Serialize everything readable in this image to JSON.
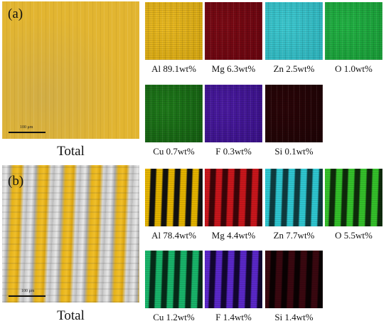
{
  "panel_a": {
    "letter": "(a)",
    "total_label": "Total",
    "scale_label": "100 μm",
    "maps": [
      {
        "element": "Al",
        "text": "Al 89.1wt%",
        "color": "#e8b820",
        "bg": "#d6a712"
      },
      {
        "element": "Mg",
        "text": "Mg 6.3wt%",
        "color": "#7a0a14",
        "bg": "#6a0610"
      },
      {
        "element": "Zn",
        "text": "Zn 2.5wt%",
        "color": "#3cc8cf",
        "bg": "#2fb4bd"
      },
      {
        "element": "O",
        "text": "O 1.0wt%",
        "color": "#22b244",
        "bg": "#1a9c38"
      },
      {
        "element": "Cu",
        "text": "Cu 0.7wt%",
        "color": "#1f7a1a",
        "bg": "#155f12"
      },
      {
        "element": "F",
        "text": "F 0.3wt%",
        "color": "#4a1aa0",
        "bg": "#3a1288"
      },
      {
        "element": "Si",
        "text": "Si 0.1wt%",
        "color": "#2a0508",
        "bg": "#1e0305"
      }
    ]
  },
  "panel_b": {
    "letter": "(b)",
    "total_label": "Total",
    "scale_label": "100 μm",
    "maps": [
      {
        "element": "Al",
        "text": "Al 78.4wt%",
        "color": "#e3b300",
        "bg": "#111111"
      },
      {
        "element": "Mg",
        "text": "Mg 4.4wt%",
        "color": "#c8161c",
        "bg": "#3a0508"
      },
      {
        "element": "Zn",
        "text": "Zn 7.7wt%",
        "color": "#2fc6d0",
        "bg": "#0f3a3d"
      },
      {
        "element": "O",
        "text": "O 5.5wt%",
        "color": "#34c02a",
        "bg": "#0e2a0b"
      },
      {
        "element": "Cu",
        "text": "Cu 1.2wt%",
        "color": "#19b46a",
        "bg": "#062a18"
      },
      {
        "element": "F",
        "text": "F 1.4wt%",
        "color": "#5a28c8",
        "bg": "#120630"
      },
      {
        "element": "Si",
        "text": "Si 1.4wt%",
        "color": "#3a0810",
        "bg": "#0a0102"
      }
    ]
  }
}
